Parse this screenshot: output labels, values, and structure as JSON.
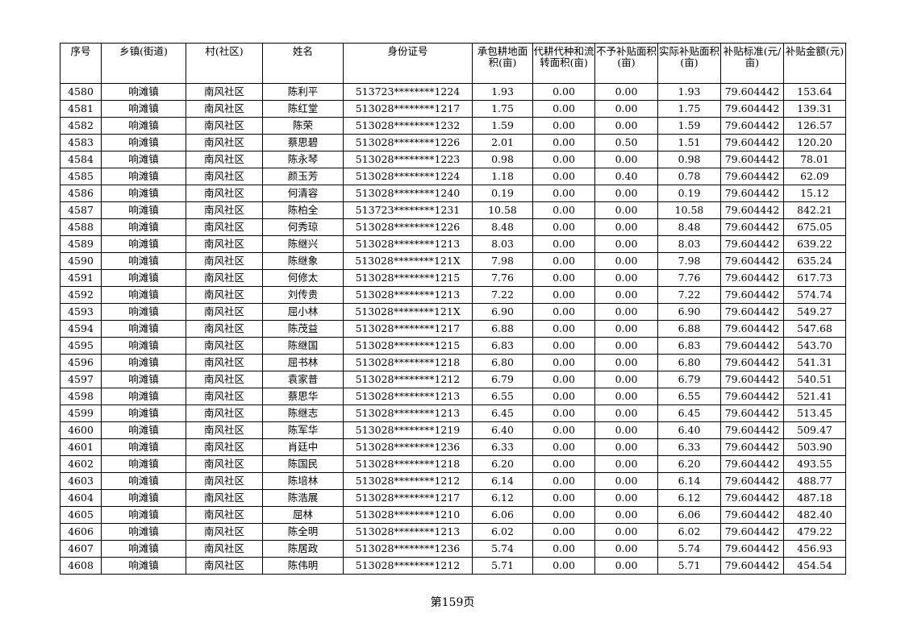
{
  "table": {
    "headers": [
      "序号",
      "乡镇(街道)",
      "村(社区)",
      "姓名",
      "身份证号",
      "承包耕地面积(亩)",
      "代耕代种和流转面积(亩)",
      "不予补贴面积(亩)",
      "实际补贴面积(亩)",
      "补贴标准(元/亩)",
      "补贴金额(元)"
    ],
    "rows": [
      [
        "4580",
        "响滩镇",
        "南风社区",
        "陈利平",
        "513723********1224",
        "1.93",
        "0.00",
        "0.00",
        "1.93",
        "79.604442",
        "153.64"
      ],
      [
        "4581",
        "响滩镇",
        "南风社区",
        "陈红堂",
        "513028********1217",
        "1.75",
        "0.00",
        "0.00",
        "1.75",
        "79.604442",
        "139.31"
      ],
      [
        "4582",
        "响滩镇",
        "南风社区",
        "陈荣",
        "513028********1232",
        "1.59",
        "0.00",
        "0.00",
        "1.59",
        "79.604442",
        "126.57"
      ],
      [
        "4583",
        "响滩镇",
        "南风社区",
        "蔡思碧",
        "513028********1226",
        "2.01",
        "0.00",
        "0.50",
        "1.51",
        "79.604442",
        "120.20"
      ],
      [
        "4584",
        "响滩镇",
        "南风社区",
        "陈永琴",
        "513028********1223",
        "0.98",
        "0.00",
        "0.00",
        "0.98",
        "79.604442",
        "78.01"
      ],
      [
        "4585",
        "响滩镇",
        "南风社区",
        "颜玉芳",
        "513028********1224",
        "1.18",
        "0.00",
        "0.40",
        "0.78",
        "79.604442",
        "62.09"
      ],
      [
        "4586",
        "响滩镇",
        "南风社区",
        "何清容",
        "513028********1240",
        "0.19",
        "0.00",
        "0.00",
        "0.19",
        "79.604442",
        "15.12"
      ],
      [
        "4587",
        "响滩镇",
        "南风社区",
        "陈柏全",
        "513723********1231",
        "10.58",
        "0.00",
        "0.00",
        "10.58",
        "79.604442",
        "842.21"
      ],
      [
        "4588",
        "响滩镇",
        "南风社区",
        "何秀琼",
        "513028********1226",
        "8.48",
        "0.00",
        "0.00",
        "8.48",
        "79.604442",
        "675.05"
      ],
      [
        "4589",
        "响滩镇",
        "南风社区",
        "陈继兴",
        "513028********1213",
        "8.03",
        "0.00",
        "0.00",
        "8.03",
        "79.604442",
        "639.22"
      ],
      [
        "4590",
        "响滩镇",
        "南风社区",
        "陈继象",
        "513028********121X",
        "7.98",
        "0.00",
        "0.00",
        "7.98",
        "79.604442",
        "635.24"
      ],
      [
        "4591",
        "响滩镇",
        "南风社区",
        "何修太",
        "513028********1215",
        "7.76",
        "0.00",
        "0.00",
        "7.76",
        "79.604442",
        "617.73"
      ],
      [
        "4592",
        "响滩镇",
        "南风社区",
        "刘传贵",
        "513028********1213",
        "7.22",
        "0.00",
        "0.00",
        "7.22",
        "79.604442",
        "574.74"
      ],
      [
        "4593",
        "响滩镇",
        "南风社区",
        "屈小林",
        "513028********121X",
        "6.90",
        "0.00",
        "0.00",
        "6.90",
        "79.604442",
        "549.27"
      ],
      [
        "4594",
        "响滩镇",
        "南风社区",
        "陈茂益",
        "513028********1217",
        "6.88",
        "0.00",
        "0.00",
        "6.88",
        "79.604442",
        "547.68"
      ],
      [
        "4595",
        "响滩镇",
        "南风社区",
        "陈继国",
        "513028********1215",
        "6.83",
        "0.00",
        "0.00",
        "6.83",
        "79.604442",
        "543.70"
      ],
      [
        "4596",
        "响滩镇",
        "南风社区",
        "屈书林",
        "513028********1218",
        "6.80",
        "0.00",
        "0.00",
        "6.80",
        "79.604442",
        "541.31"
      ],
      [
        "4597",
        "响滩镇",
        "南风社区",
        "袁家普",
        "513028********1212",
        "6.79",
        "0.00",
        "0.00",
        "6.79",
        "79.604442",
        "540.51"
      ],
      [
        "4598",
        "响滩镇",
        "南风社区",
        "蔡思华",
        "513028********1213",
        "6.55",
        "0.00",
        "0.00",
        "6.55",
        "79.604442",
        "521.41"
      ],
      [
        "4599",
        "响滩镇",
        "南风社区",
        "陈继志",
        "513028********1213",
        "6.45",
        "0.00",
        "0.00",
        "6.45",
        "79.604442",
        "513.45"
      ],
      [
        "4600",
        "响滩镇",
        "南风社区",
        "陈军华",
        "513028********1219",
        "6.40",
        "0.00",
        "0.00",
        "6.40",
        "79.604442",
        "509.47"
      ],
      [
        "4601",
        "响滩镇",
        "南风社区",
        "肖廷中",
        "513028********1236",
        "6.33",
        "0.00",
        "0.00",
        "6.33",
        "79.604442",
        "503.90"
      ],
      [
        "4602",
        "响滩镇",
        "南风社区",
        "陈国民",
        "513028********1218",
        "6.20",
        "0.00",
        "0.00",
        "6.20",
        "79.604442",
        "493.55"
      ],
      [
        "4603",
        "响滩镇",
        "南风社区",
        "陈培林",
        "513028********1212",
        "6.14",
        "0.00",
        "0.00",
        "6.14",
        "79.604442",
        "488.77"
      ],
      [
        "4604",
        "响滩镇",
        "南风社区",
        "陈浩展",
        "513028********1217",
        "6.12",
        "0.00",
        "0.00",
        "6.12",
        "79.604442",
        "487.18"
      ],
      [
        "4605",
        "响滩镇",
        "南风社区",
        "屈林",
        "513028********1210",
        "6.06",
        "0.00",
        "0.00",
        "6.06",
        "79.604442",
        "482.40"
      ],
      [
        "4606",
        "响滩镇",
        "南风社区",
        "陈全明",
        "513028********1213",
        "6.02",
        "0.00",
        "0.00",
        "6.02",
        "79.604442",
        "479.22"
      ],
      [
        "4607",
        "响滩镇",
        "南风社区",
        "陈居政",
        "513028********1236",
        "5.74",
        "0.00",
        "0.00",
        "5.74",
        "79.604442",
        "456.93"
      ],
      [
        "4608",
        "响滩镇",
        "南风社区",
        "陈伟明",
        "513028********1212",
        "5.71",
        "0.00",
        "0.00",
        "5.71",
        "79.604442",
        "454.54"
      ]
    ]
  },
  "footer": {
    "page_label": "第159页"
  }
}
